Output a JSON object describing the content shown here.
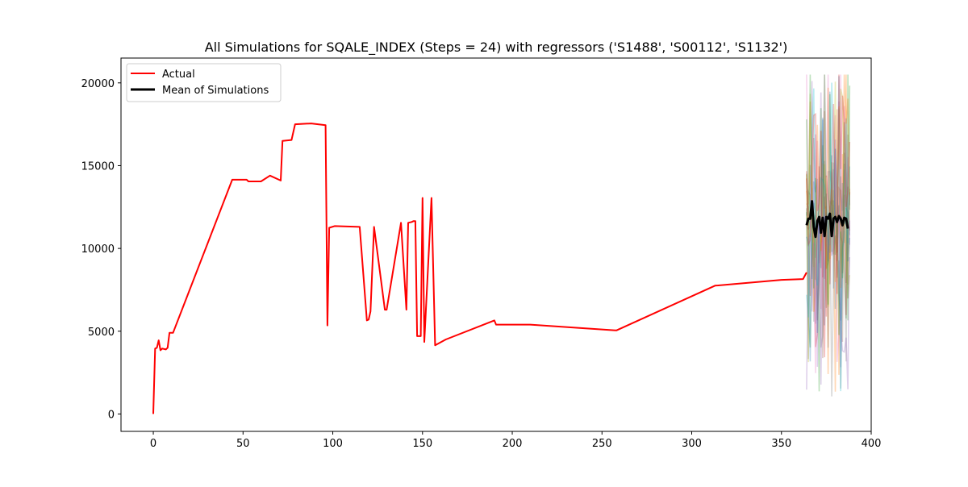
{
  "chart_data": {
    "type": "line",
    "title": "All Simulations for SQALE_INDEX (Steps = 24) with regressors ('S1488', 'S00112', 'S1132')",
    "xlabel": "",
    "ylabel": "",
    "xlim": [
      -18,
      400
    ],
    "ylim": [
      -1050,
      21500
    ],
    "xticks": [
      0,
      50,
      100,
      150,
      200,
      250,
      300,
      350,
      400
    ],
    "yticks": [
      0,
      5000,
      10000,
      15000,
      20000
    ],
    "grid": false,
    "legend": {
      "placement": "upper-left",
      "entries": [
        {
          "label": "Actual",
          "color": "#ff0000"
        },
        {
          "label": "Mean of Simulations",
          "color": "#000000"
        }
      ]
    },
    "series": [
      {
        "name": "Actual",
        "color": "#ff0000",
        "points": [
          [
            0,
            0
          ],
          [
            1,
            3950
          ],
          [
            2,
            4000
          ],
          [
            3,
            4450
          ],
          [
            4,
            3850
          ],
          [
            5,
            3950
          ],
          [
            7,
            3900
          ],
          [
            8,
            4000
          ],
          [
            9,
            4900
          ],
          [
            11,
            4900
          ],
          [
            44,
            14150
          ],
          [
            52,
            14150
          ],
          [
            53,
            14050
          ],
          [
            60,
            14050
          ],
          [
            65,
            14400
          ],
          [
            71,
            14100
          ],
          [
            72,
            16500
          ],
          [
            77,
            16550
          ],
          [
            79,
            17500
          ],
          [
            88,
            17550
          ],
          [
            96,
            17450
          ],
          [
            97,
            5350
          ],
          [
            98,
            11250
          ],
          [
            101,
            11350
          ],
          [
            115,
            11300
          ],
          [
            119,
            5650
          ],
          [
            120,
            5700
          ],
          [
            121,
            6200
          ],
          [
            123,
            11300
          ],
          [
            129,
            6300
          ],
          [
            130,
            6300
          ],
          [
            138,
            11550
          ],
          [
            141,
            6300
          ],
          [
            142,
            11550
          ],
          [
            144,
            11600
          ],
          [
            145,
            11650
          ],
          [
            146,
            11650
          ],
          [
            147,
            4700
          ],
          [
            148,
            4700
          ],
          [
            149,
            4700
          ],
          [
            150,
            13050
          ],
          [
            151,
            4350
          ],
          [
            155,
            13050
          ],
          [
            157,
            4150
          ],
          [
            163,
            4500
          ],
          [
            190,
            5650
          ],
          [
            191,
            5400
          ],
          [
            210,
            5400
          ],
          [
            258,
            5050
          ],
          [
            313,
            7750
          ],
          [
            350,
            8100
          ],
          [
            362,
            8150
          ],
          [
            364,
            8550
          ]
        ]
      },
      {
        "name": "Mean of Simulations",
        "color": "#000000",
        "x_start": 364,
        "values": [
          11400,
          11800,
          11800,
          12850,
          11300,
          10700,
          11650,
          11900,
          10950,
          11850,
          10750,
          11900,
          11800,
          12100,
          10750,
          11800,
          11900,
          11600,
          11950,
          11800,
          11400,
          11850,
          11800,
          11200
        ]
      }
    ],
    "simulations": {
      "count": 15,
      "x_start": 364,
      "steps": 24,
      "center": 11500,
      "min": 800,
      "max": 20500,
      "colors": [
        "#1f77b4",
        "#ff7f0e",
        "#2ca02c",
        "#d62728",
        "#9467bd",
        "#8c564b",
        "#e377c2",
        "#7f7f7f",
        "#bcbd22",
        "#17becf",
        "#1f77b4",
        "#ff7f0e",
        "#2ca02c",
        "#d62728",
        "#9467bd"
      ],
      "opacity": 0.3
    }
  }
}
